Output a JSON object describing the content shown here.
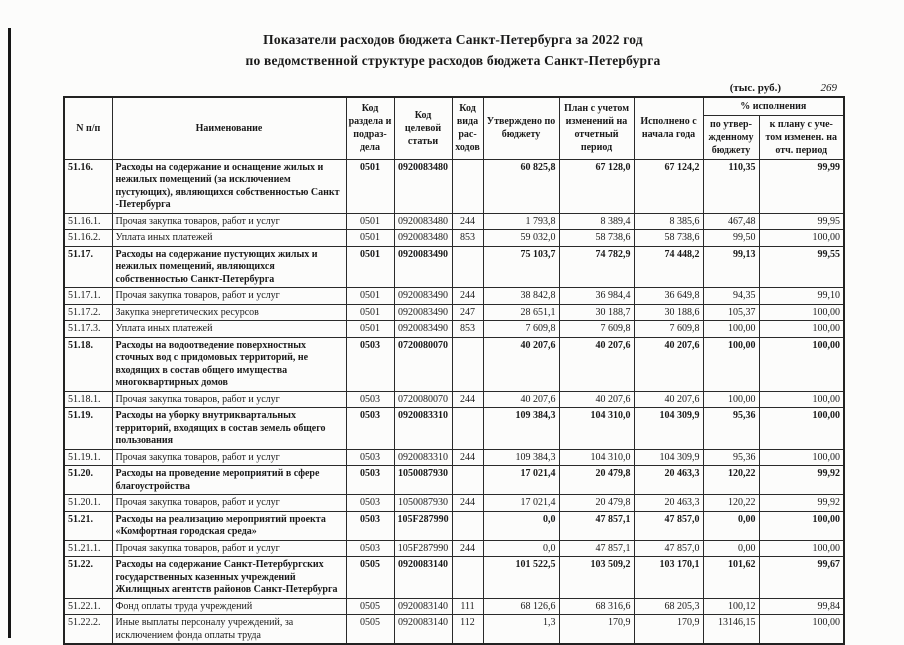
{
  "page": {
    "title_line1": "Показатели расходов бюджета Санкт-Петербурга за 2022 год",
    "title_line2": "по ведомственной структуре расходов бюджета Санкт-Петербурга",
    "units_note": "(тыс. руб.)",
    "page_number": "269"
  },
  "table": {
    "headers": {
      "num": "N п/п",
      "name": "Наименование",
      "section_code": "Код раздела и подраз- дела",
      "target_code": "Код целевой статьи",
      "expense_type_code": "Код вида рас- ходов",
      "approved": "Утверждено по бюджету",
      "plan": "План с учетом изменений на отчетный период",
      "executed": "Исполнено с начала года",
      "pct": "% исполнения",
      "pct_budget": "по утвер- жденному бюджету",
      "pct_plan": "к плану с уче- том изменен. на отч. период"
    },
    "rows": [
      {
        "num": "51.16.",
        "name": "Расходы на содержание и оснащение жилых и нежилых помещений (за исключением пустующих), являющихся собственностью Санкт -Петербурга",
        "rz": "0501",
        "csr": "0920083480",
        "vr": "",
        "approved": "60 825,8",
        "plan": "67 128,0",
        "executed": "67 124,2",
        "pct_budget": "110,35",
        "pct_plan": "99,99",
        "bold": true
      },
      {
        "num": "51.16.1.",
        "name": "Прочая закупка товаров, работ и услуг",
        "rz": "0501",
        "csr": "0920083480",
        "vr": "244",
        "approved": "1 793,8",
        "plan": "8 389,4",
        "executed": "8 385,6",
        "pct_budget": "467,48",
        "pct_plan": "99,95",
        "bold": false
      },
      {
        "num": "51.16.2.",
        "name": "Уплата иных платежей",
        "rz": "0501",
        "csr": "0920083480",
        "vr": "853",
        "approved": "59 032,0",
        "plan": "58 738,6",
        "executed": "58 738,6",
        "pct_budget": "99,50",
        "pct_plan": "100,00",
        "bold": false
      },
      {
        "num": "51.17.",
        "name": "Расходы на содержание пустующих жилых и нежилых помещений, являющихся собственностью Санкт-Петербурга",
        "rz": "0501",
        "csr": "0920083490",
        "vr": "",
        "approved": "75 103,7",
        "plan": "74 782,9",
        "executed": "74 448,2",
        "pct_budget": "99,13",
        "pct_plan": "99,55",
        "bold": true
      },
      {
        "num": "51.17.1.",
        "name": "Прочая закупка товаров, работ и услуг",
        "rz": "0501",
        "csr": "0920083490",
        "vr": "244",
        "approved": "38 842,8",
        "plan": "36 984,4",
        "executed": "36 649,8",
        "pct_budget": "94,35",
        "pct_plan": "99,10",
        "bold": false
      },
      {
        "num": "51.17.2.",
        "name": "Закупка энергетических ресурсов",
        "rz": "0501",
        "csr": "0920083490",
        "vr": "247",
        "approved": "28 651,1",
        "plan": "30 188,7",
        "executed": "30 188,6",
        "pct_budget": "105,37",
        "pct_plan": "100,00",
        "bold": false
      },
      {
        "num": "51.17.3.",
        "name": "Уплата иных платежей",
        "rz": "0501",
        "csr": "0920083490",
        "vr": "853",
        "approved": "7 609,8",
        "plan": "7 609,8",
        "executed": "7 609,8",
        "pct_budget": "100,00",
        "pct_plan": "100,00",
        "bold": false
      },
      {
        "num": "51.18.",
        "name": "Расходы на водоотведение поверхностных сточных вод с придомовых территорий, не входящих в состав общего имущества многоквартирных домов",
        "rz": "0503",
        "csr": "0720080070",
        "vr": "",
        "approved": "40 207,6",
        "plan": "40 207,6",
        "executed": "40 207,6",
        "pct_budget": "100,00",
        "pct_plan": "100,00",
        "bold": true
      },
      {
        "num": "51.18.1.",
        "name": "Прочая закупка товаров, работ и услуг",
        "rz": "0503",
        "csr": "0720080070",
        "vr": "244",
        "approved": "40 207,6",
        "plan": "40 207,6",
        "executed": "40 207,6",
        "pct_budget": "100,00",
        "pct_plan": "100,00",
        "bold": false
      },
      {
        "num": "51.19.",
        "name": "Расходы на уборку внутриквартальных территорий, входящих в состав земель общего пользования",
        "rz": "0503",
        "csr": "0920083310",
        "vr": "",
        "approved": "109 384,3",
        "plan": "104 310,0",
        "executed": "104 309,9",
        "pct_budget": "95,36",
        "pct_plan": "100,00",
        "bold": true
      },
      {
        "num": "51.19.1.",
        "name": "Прочая закупка товаров, работ и услуг",
        "rz": "0503",
        "csr": "0920083310",
        "vr": "244",
        "approved": "109 384,3",
        "plan": "104 310,0",
        "executed": "104 309,9",
        "pct_budget": "95,36",
        "pct_plan": "100,00",
        "bold": false
      },
      {
        "num": "51.20.",
        "name": "Расходы на проведение мероприятий в сфере благоустройства",
        "rz": "0503",
        "csr": "1050087930",
        "vr": "",
        "approved": "17 021,4",
        "plan": "20 479,8",
        "executed": "20 463,3",
        "pct_budget": "120,22",
        "pct_plan": "99,92",
        "bold": true
      },
      {
        "num": "51.20.1.",
        "name": "Прочая закупка товаров, работ и услуг",
        "rz": "0503",
        "csr": "1050087930",
        "vr": "244",
        "approved": "17 021,4",
        "plan": "20 479,8",
        "executed": "20 463,3",
        "pct_budget": "120,22",
        "pct_plan": "99,92",
        "bold": false
      },
      {
        "num": "51.21.",
        "name": "Расходы на реализацию мероприятий проекта «Комфортная городская среда»",
        "rz": "0503",
        "csr": "105F287990",
        "vr": "",
        "approved": "0,0",
        "plan": "47 857,1",
        "executed": "47 857,0",
        "pct_budget": "0,00",
        "pct_plan": "100,00",
        "bold": true
      },
      {
        "num": "51.21.1.",
        "name": "Прочая закупка товаров, работ и услуг",
        "rz": "0503",
        "csr": "105F287990",
        "vr": "244",
        "approved": "0,0",
        "plan": "47 857,1",
        "executed": "47 857,0",
        "pct_budget": "0,00",
        "pct_plan": "100,00",
        "bold": false
      },
      {
        "num": "51.22.",
        "name": "Расходы на содержание Санкт-Петербургских государственных  казенных учреждений Жилищных агентств районов Санкт-Петербурга",
        "rz": "0505",
        "csr": "0920083140",
        "vr": "",
        "approved": "101 522,5",
        "plan": "103 509,2",
        "executed": "103 170,1",
        "pct_budget": "101,62",
        "pct_plan": "99,67",
        "bold": true
      },
      {
        "num": "51.22.1.",
        "name": "Фонд оплаты труда учреждений",
        "rz": "0505",
        "csr": "0920083140",
        "vr": "111",
        "approved": "68 126,6",
        "plan": "68 316,6",
        "executed": "68 205,3",
        "pct_budget": "100,12",
        "pct_plan": "99,84",
        "bold": false
      },
      {
        "num": "51.22.2.",
        "name": "Иные выплаты персоналу учреждений, за исключением фонда оплаты труда",
        "rz": "0505",
        "csr": "0920083140",
        "vr": "112",
        "approved": "1,3",
        "plan": "170,9",
        "executed": "170,9",
        "pct_budget": "13146,15",
        "pct_plan": "100,00",
        "bold": false
      }
    ]
  }
}
